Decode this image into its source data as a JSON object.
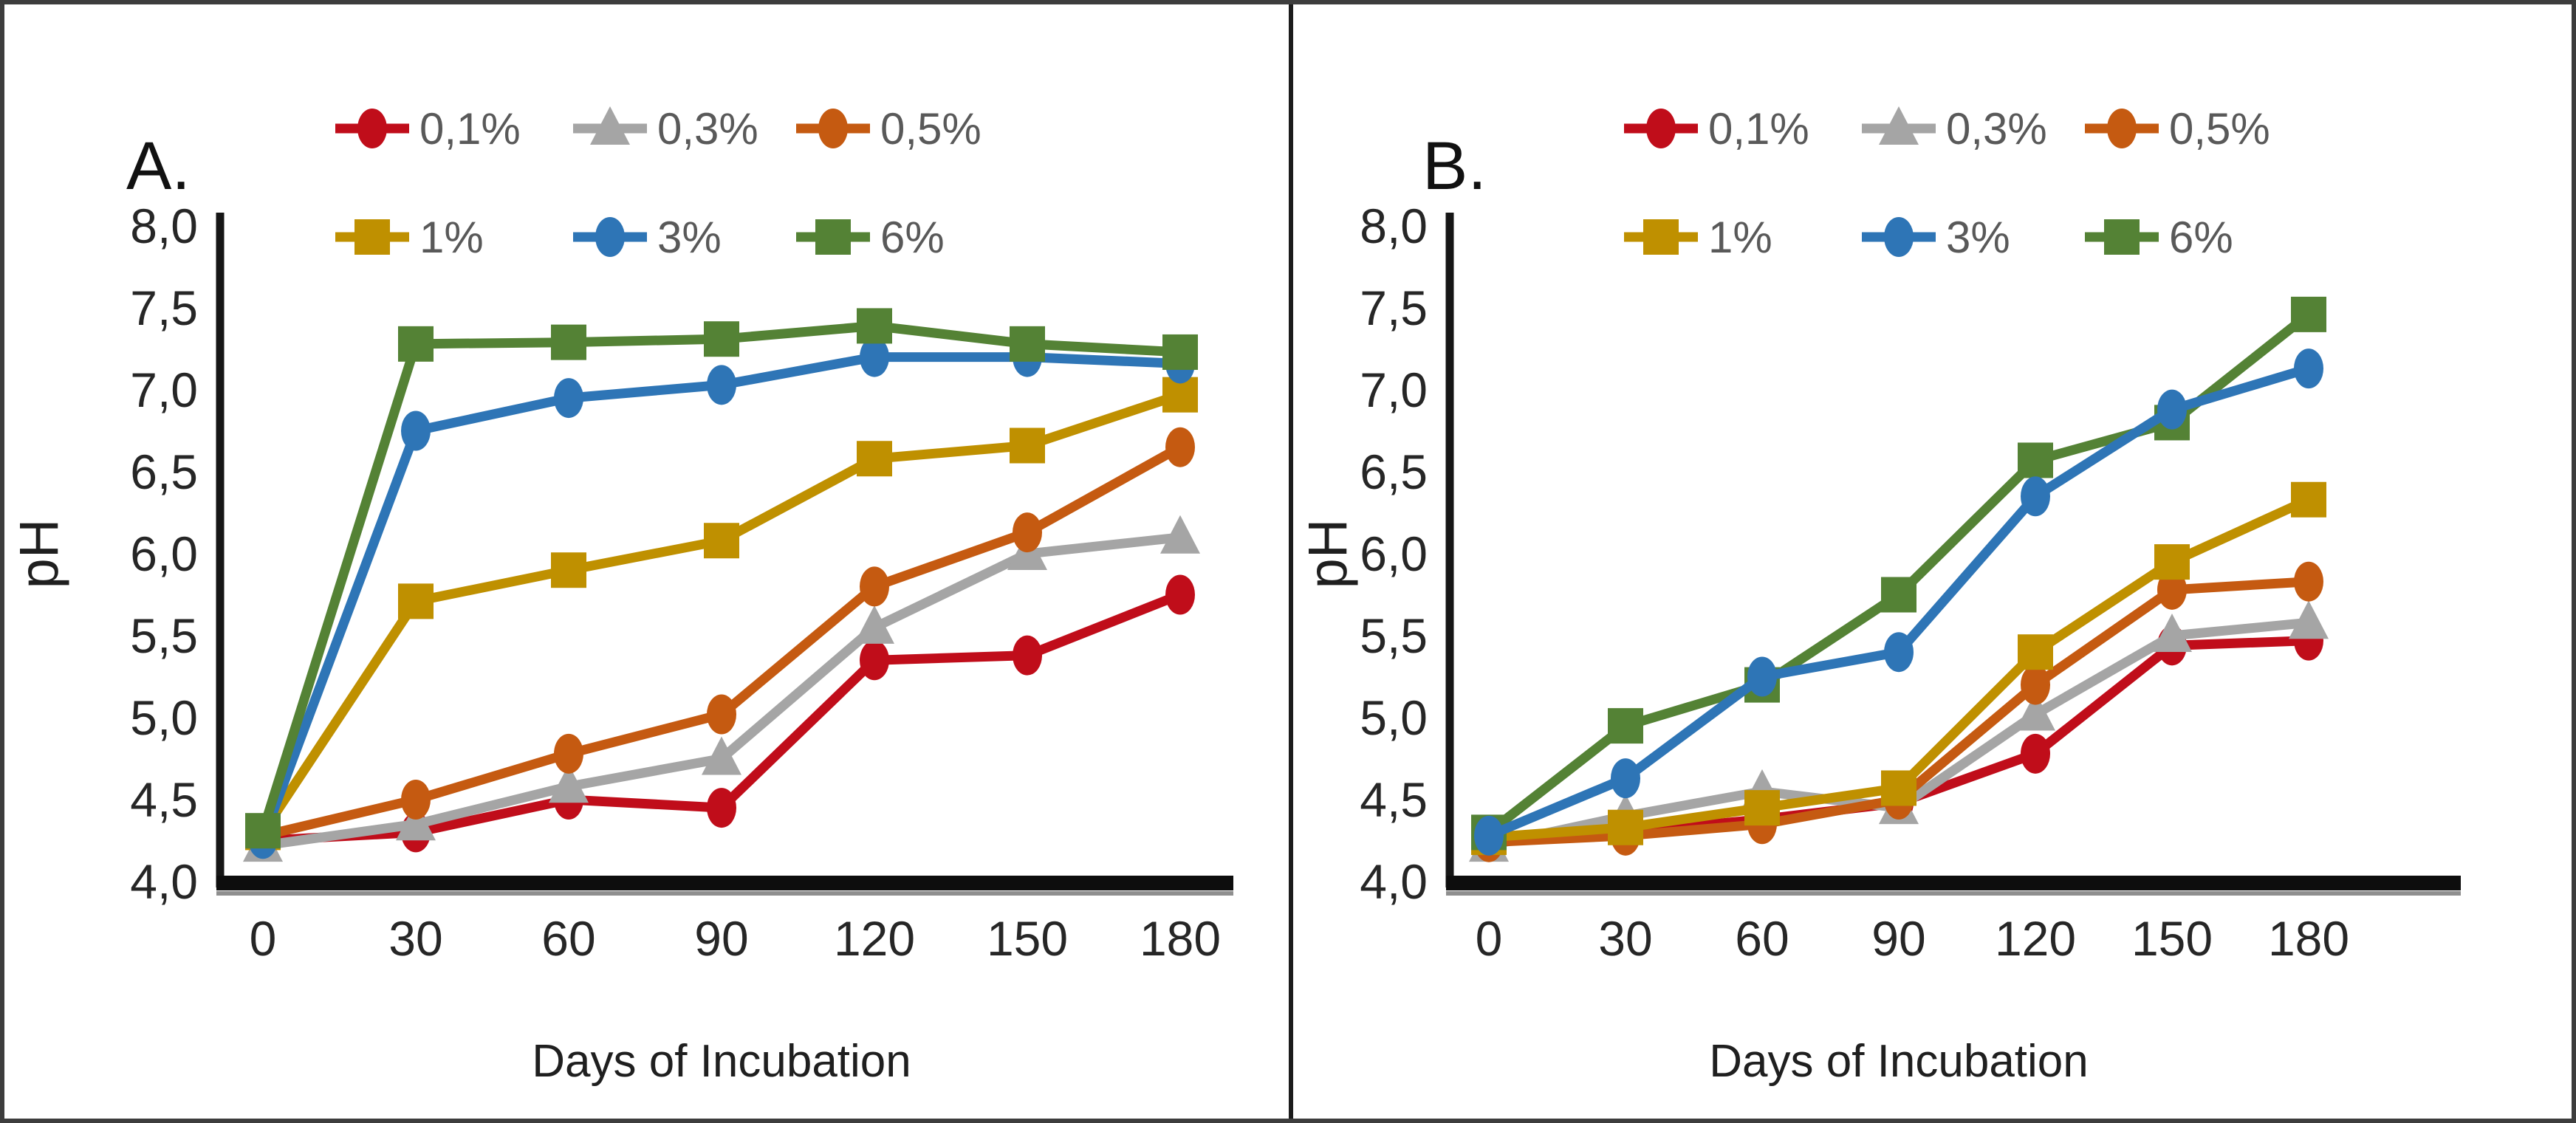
{
  "figure": {
    "panels": [
      "A.",
      "B."
    ]
  },
  "chart_data": [
    {
      "type": "line",
      "panel_label": "A.",
      "title": "",
      "xlabel": "Days of Incubation",
      "ylabel": "pH",
      "x": [
        0,
        30,
        60,
        90,
        120,
        150,
        180
      ],
      "x_tick_labels": [
        "0",
        "30",
        "60",
        "90",
        "120",
        "150",
        "180"
      ],
      "ylim": [
        4.0,
        8.0
      ],
      "y_tick_values": [
        8.0,
        7.5,
        7.0,
        6.5,
        6.0,
        5.5,
        5.0,
        4.5,
        4.0
      ],
      "y_tick_labels": [
        "8,0",
        "7,5",
        "7,0",
        "6,5",
        "6,0",
        "5,5",
        "5,0",
        "4,5",
        "4,0"
      ],
      "grid": false,
      "legend_position": "top",
      "legend_text_color": "#595959",
      "series": [
        {
          "name": "0,1%",
          "color": "#c00d1a",
          "marker": "circle",
          "legend_slot": 0,
          "values": [
            4.25,
            4.3,
            4.5,
            4.45,
            5.35,
            5.38,
            5.75
          ]
        },
        {
          "name": "0,3%",
          "color": "#a5a5a5",
          "marker": "triangle",
          "legend_slot": 1,
          "values": [
            4.22,
            4.35,
            4.58,
            4.75,
            5.55,
            6.0,
            6.1
          ]
        },
        {
          "name": "0,5%",
          "color": "#c55a11",
          "marker": "circle",
          "legend_slot": 2,
          "values": [
            4.28,
            4.5,
            4.78,
            5.02,
            5.8,
            6.13,
            6.65
          ]
        },
        {
          "name": "1%",
          "color": "#bf9000",
          "marker": "square",
          "legend_slot": 3,
          "values": [
            4.3,
            5.71,
            5.9,
            6.08,
            6.58,
            6.66,
            6.97
          ]
        },
        {
          "name": "3%",
          "color": "#2e75b6",
          "marker": "circle",
          "legend_slot": 4,
          "values": [
            4.26,
            6.75,
            6.95,
            7.03,
            7.2,
            7.2,
            7.16
          ]
        },
        {
          "name": "6%",
          "color": "#548235",
          "marker": "square",
          "legend_slot": 5,
          "values": [
            4.31,
            7.28,
            7.29,
            7.31,
            7.39,
            7.28,
            7.23
          ]
        }
      ]
    },
    {
      "type": "line",
      "panel_label": "B.",
      "title": "",
      "xlabel": "Days of Incubation",
      "ylabel": "pH",
      "x": [
        0,
        30,
        60,
        90,
        120,
        150,
        180
      ],
      "x_tick_labels": [
        "0",
        "30",
        "60",
        "90",
        "120",
        "150",
        "180"
      ],
      "ylim": [
        4.0,
        8.0
      ],
      "y_tick_values": [
        8.0,
        7.5,
        7.0,
        6.5,
        6.0,
        5.5,
        5.0,
        4.5,
        4.0
      ],
      "y_tick_labels": [
        "8,0",
        "7,5",
        "7,0",
        "6,5",
        "6,0",
        "5,5",
        "5,0",
        "4,5",
        "4,0"
      ],
      "grid": false,
      "legend_position": "top",
      "legend_text_color": "#595959",
      "series": [
        {
          "name": "0,1%",
          "color": "#c00d1a",
          "marker": "circle",
          "legend_slot": 0,
          "values": [
            4.25,
            4.3,
            4.38,
            4.48,
            4.78,
            5.44,
            5.47
          ]
        },
        {
          "name": "0,3%",
          "color": "#a5a5a5",
          "marker": "triangle",
          "legend_slot": 1,
          "values": [
            4.22,
            4.4,
            4.55,
            4.45,
            5.02,
            5.5,
            5.58
          ]
        },
        {
          "name": "0,5%",
          "color": "#c55a11",
          "marker": "circle",
          "legend_slot": 2,
          "values": [
            4.24,
            4.28,
            4.35,
            4.5,
            5.2,
            5.78,
            5.83
          ]
        },
        {
          "name": "1%",
          "color": "#bf9000",
          "marker": "square",
          "legend_slot": 3,
          "values": [
            4.27,
            4.33,
            4.45,
            4.57,
            5.4,
            5.95,
            6.33
          ]
        },
        {
          "name": "6%",
          "color": "#548235",
          "marker": "square",
          "legend_slot": 5,
          "values": [
            4.3,
            4.95,
            5.2,
            5.75,
            6.57,
            6.8,
            7.46
          ]
        },
        {
          "name": "3%",
          "color": "#2e75b6",
          "marker": "circle",
          "legend_slot": 4,
          "values": [
            4.28,
            4.63,
            5.25,
            5.4,
            6.35,
            6.88,
            7.13
          ]
        }
      ]
    }
  ]
}
